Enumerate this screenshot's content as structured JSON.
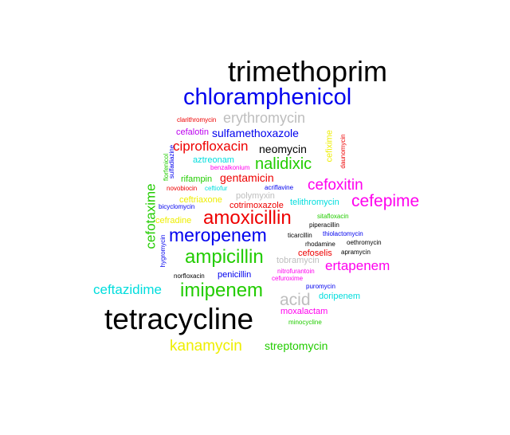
{
  "colors": {
    "black": "#000000",
    "blue": "#0000ee",
    "gray": "#bebebe",
    "red": "#ee0000",
    "green": "#22cc00",
    "magenta": "#ff00ee",
    "cyan": "#00dddd",
    "yellow": "#eeee00",
    "purple": "#bb00ee"
  },
  "words": {
    "trimethoprim": "trimethoprim",
    "chloramphenicol": "chloramphenicol",
    "erythromycin": "erythromycin",
    "clarithromycin": "clarithromycin",
    "cefalotin": "cefalotin",
    "sulfamethoxazole": "sulfamethoxazole",
    "ciprofloxacin": "ciprofloxacin",
    "neomycin": "neomycin",
    "aztreonam": "aztreonam",
    "nalidixic": "nalidixic",
    "benzalkonium": "benzalkonium",
    "rifampin": "rifampin",
    "gentamicin": "gentamicin",
    "cefoxitin": "cefoxitin",
    "novobiocin": "novobiocin",
    "ceftiofur": "ceftiofur",
    "acriflavine": "acriflavine",
    "polymyxin": "polymyxin",
    "ceftriaxone": "ceftriaxone",
    "telithromycin": "telithromycin",
    "cefepime": "cefepime",
    "bicyclomycin": "bicyclomycin",
    "cotrimoxazole": "cotrimoxazole",
    "cefradine": "cefradine",
    "amoxicillin": "amoxicillin",
    "sitafloxacin": "sitafloxacin",
    "piperacillin": "piperacillin",
    "meropenem": "meropenem",
    "ticarcillin": "ticarcillin",
    "thiolactomycin": "thiolactomycin",
    "rhodamine": "rhodamine",
    "oethromycin": "oethromycin",
    "ampicillin": "ampicillin",
    "cefoselis": "cefoselis",
    "apramycin": "apramycin",
    "tobramycin": "tobramycin",
    "ertapenem": "ertapenem",
    "nitrofurantoin": "nitrofurantoin",
    "norfloxacin": "norfloxacin",
    "penicillin": "penicillin",
    "cefuroxime": "cefuroxime",
    "ceftazidime": "ceftazidime",
    "imipenem": "imipenem",
    "puromycin": "puromycin",
    "acid": "acid",
    "doripenem": "doripenem",
    "moxalactam": "moxalactam",
    "tetracycline": "tetracycline",
    "minocycline": "minocycline",
    "kanamycin": "kanamycin",
    "streptomycin": "streptomycin",
    "cefotaxime": "cefotaxime",
    "florfenicol": "florfenicol",
    "sulfadiazine": "sulfadiazine",
    "hygromycin": "hygromycin",
    "cefixime": "cefixime",
    "daunomycin": "daunomycin"
  }
}
